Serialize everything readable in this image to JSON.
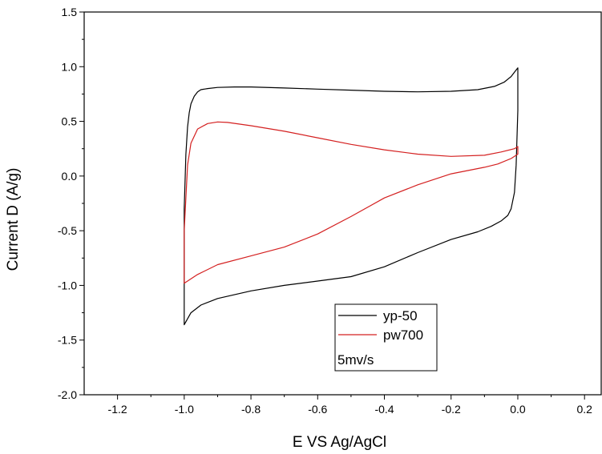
{
  "chart_data": {
    "type": "line",
    "title": "",
    "xlabel": "E VS Ag/AgCl",
    "ylabel": "Current D (A/g)",
    "xlim": [
      -1.3,
      0.25
    ],
    "ylim": [
      -2.0,
      1.5
    ],
    "xticks": [
      -1.2,
      -1.0,
      -0.8,
      -0.6,
      -0.4,
      -0.2,
      0.0,
      0.2
    ],
    "xtick_labels": [
      "-1.2",
      "-1.0",
      "-0.8",
      "-0.6",
      "-0.4",
      "-0.2",
      "0.0",
      "0.2"
    ],
    "yticks": [
      -2.0,
      -1.5,
      -1.0,
      -0.5,
      0.0,
      0.5,
      1.0,
      1.5
    ],
    "ytick_labels": [
      "-2.0",
      "-1.5",
      "-1.0",
      "-0.5",
      "0.0",
      "0.5",
      "1.0",
      "1.5"
    ],
    "grid": false,
    "legend_position": "bottom-center",
    "legend_note": "5mv/s",
    "series": [
      {
        "name": "yp-50",
        "color": "#000000",
        "x": [
          -1.0,
          -0.995,
          -0.99,
          -0.985,
          -0.98,
          -0.97,
          -0.96,
          -0.95,
          -0.93,
          -0.9,
          -0.85,
          -0.8,
          -0.7,
          -0.6,
          -0.5,
          -0.4,
          -0.3,
          -0.2,
          -0.12,
          -0.07,
          -0.04,
          -0.02,
          -0.01,
          0.0,
          0.0,
          -0.005,
          -0.01,
          -0.02,
          -0.03,
          -0.05,
          -0.08,
          -0.12,
          -0.2,
          -0.3,
          -0.4,
          -0.5,
          -0.6,
          -0.7,
          -0.8,
          -0.9,
          -0.95,
          -0.98,
          -1.0,
          -1.0
        ],
        "y": [
          -0.3,
          0.2,
          0.45,
          0.58,
          0.66,
          0.73,
          0.77,
          0.79,
          0.8,
          0.81,
          0.815,
          0.815,
          0.805,
          0.795,
          0.785,
          0.775,
          0.77,
          0.775,
          0.79,
          0.82,
          0.86,
          0.91,
          0.95,
          0.99,
          0.6,
          0.1,
          -0.15,
          -0.3,
          -0.36,
          -0.41,
          -0.46,
          -0.51,
          -0.58,
          -0.7,
          -0.83,
          -0.92,
          -0.96,
          -1.0,
          -1.05,
          -1.12,
          -1.18,
          -1.25,
          -1.36,
          -0.3
        ]
      },
      {
        "name": "pw700",
        "color": "#d42020",
        "x": [
          -1.0,
          -0.99,
          -0.98,
          -0.96,
          -0.93,
          -0.9,
          -0.87,
          -0.8,
          -0.7,
          -0.6,
          -0.5,
          -0.4,
          -0.3,
          -0.2,
          -0.1,
          -0.05,
          -0.01,
          0.0,
          0.0,
          -0.02,
          -0.06,
          -0.1,
          -0.2,
          -0.3,
          -0.4,
          -0.5,
          -0.6,
          -0.7,
          -0.8,
          -0.9,
          -0.96,
          -0.99,
          -1.0,
          -1.0
        ],
        "y": [
          -0.5,
          0.1,
          0.3,
          0.43,
          0.48,
          0.495,
          0.49,
          0.46,
          0.41,
          0.35,
          0.29,
          0.24,
          0.2,
          0.18,
          0.19,
          0.22,
          0.25,
          0.27,
          0.2,
          0.16,
          0.11,
          0.08,
          0.02,
          -0.08,
          -0.2,
          -0.37,
          -0.53,
          -0.65,
          -0.73,
          -0.81,
          -0.9,
          -0.96,
          -0.98,
          -0.5
        ]
      }
    ]
  }
}
